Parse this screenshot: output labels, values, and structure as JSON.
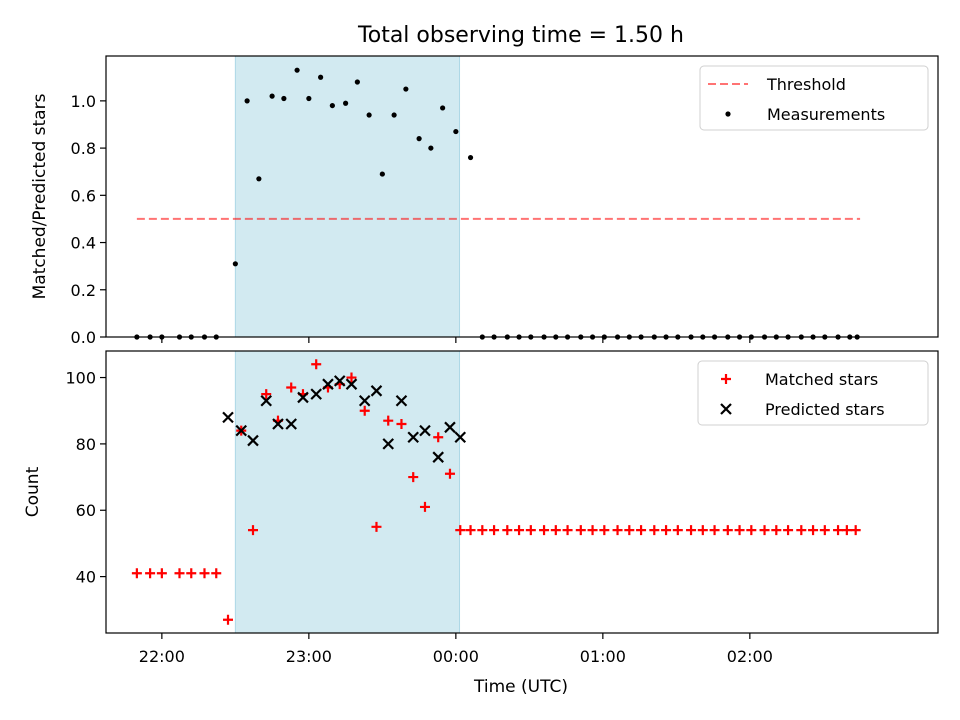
{
  "figure": {
    "title": "Total observing time = 1.50 h",
    "xlabel": "Time (UTC)",
    "x_ticks": [
      "22:00",
      "23:00",
      "00:00",
      "01:00",
      "02:00"
    ],
    "x_tick_hours": [
      22,
      23,
      24,
      25,
      26
    ],
    "x_range_hours": [
      21.62,
      27.28
    ],
    "shaded_interval_hours": [
      22.5,
      24.025
    ],
    "colors": {
      "shade": "#add8e6",
      "threshold": "#ff0000",
      "measurements": "#000000",
      "matched": "#ff0000",
      "predicted": "#000000"
    }
  },
  "chart_data": [
    {
      "type": "scatter",
      "ylabel": "Matched/Predicted stars",
      "ylim": [
        0,
        1.19
      ],
      "y_ticks": [
        "0.0",
        "0.2",
        "0.4",
        "0.6",
        "0.8",
        "1.0"
      ],
      "y_tick_values": [
        0,
        0.2,
        0.4,
        0.6,
        0.8,
        1.0
      ],
      "legend": [
        "Threshold",
        "Measurements"
      ],
      "legend_position": "top-right",
      "threshold": {
        "name": "Threshold",
        "value": 0.5,
        "x_from": 21.83,
        "x_to": 26.75
      },
      "series": [
        {
          "name": "Measurements",
          "x": [
            21.83,
            21.92,
            22.0,
            22.12,
            22.2,
            22.29,
            22.37,
            22.5,
            22.58,
            22.66,
            22.75,
            22.83,
            22.92,
            23.0,
            23.08,
            23.16,
            23.25,
            23.33,
            23.41,
            23.5,
            23.58,
            23.66,
            23.75,
            23.83,
            23.91,
            24.0,
            24.1,
            24.18,
            24.26,
            24.35,
            24.43,
            24.51,
            24.6,
            24.68,
            24.76,
            24.85,
            24.93,
            25.01,
            25.1,
            25.18,
            25.26,
            25.35,
            25.43,
            25.51,
            25.6,
            25.68,
            25.76,
            25.85,
            25.93,
            26.01,
            26.1,
            26.18,
            26.26,
            26.35,
            26.43,
            26.51,
            26.6,
            26.68,
            26.73
          ],
          "y": [
            0,
            0,
            0,
            0,
            0,
            0,
            0,
            0.31,
            1.0,
            0.67,
            1.02,
            1.01,
            1.13,
            1.01,
            1.1,
            0.98,
            0.99,
            1.08,
            0.94,
            0.69,
            0.94,
            1.05,
            0.84,
            0.8,
            0.97,
            0.87,
            0.76,
            0,
            0,
            0,
            0,
            0,
            0,
            0,
            0,
            0,
            0,
            0,
            0,
            0,
            0,
            0,
            0,
            0,
            0,
            0,
            0,
            0,
            0,
            0,
            0,
            0,
            0,
            0,
            0,
            0,
            0,
            0,
            0
          ],
          "_note_ignore": null
        }
      ]
    },
    {
      "type": "scatter",
      "ylabel": "Count",
      "ylim": [
        23,
        108
      ],
      "y_ticks": [
        "40",
        "60",
        "80",
        "100"
      ],
      "y_tick_values": [
        40,
        60,
        80,
        100
      ],
      "legend": [
        "Matched stars",
        "Predicted stars"
      ],
      "legend_position": "top-right",
      "series": [
        {
          "name": "Matched stars",
          "x": [
            21.83,
            21.92,
            22.0,
            22.12,
            22.2,
            22.29,
            22.37,
            22.45,
            22.54,
            22.62,
            22.71,
            22.79,
            22.88,
            22.96,
            23.05,
            23.13,
            23.21,
            23.29,
            23.38,
            23.46,
            23.54,
            23.63,
            23.71,
            23.79,
            23.88,
            23.96,
            24.03,
            24.1,
            24.18,
            24.26,
            24.35,
            24.43,
            24.51,
            24.6,
            24.68,
            24.76,
            24.85,
            24.93,
            25.01,
            25.1,
            25.18,
            25.26,
            25.35,
            25.43,
            25.51,
            25.6,
            25.68,
            25.76,
            25.85,
            25.93,
            26.01,
            26.1,
            26.18,
            26.26,
            26.35,
            26.43,
            26.51,
            26.6,
            26.66,
            26.72
          ],
          "y": [
            41,
            41,
            41,
            41,
            41,
            41,
            41,
            27,
            84,
            54,
            95,
            87,
            97,
            95,
            104,
            97,
            98,
            100,
            90,
            55,
            87,
            86,
            70,
            61,
            82,
            71,
            54,
            54,
            54,
            54,
            54,
            54,
            54,
            54,
            54,
            54,
            54,
            54,
            54,
            54,
            54,
            54,
            54,
            54,
            54,
            54,
            54,
            54,
            54,
            54,
            54,
            54,
            54,
            54,
            54,
            54,
            54,
            54,
            54,
            54
          ]
        },
        {
          "name": "Predicted stars",
          "x": [
            22.45,
            22.54,
            22.62,
            22.71,
            22.79,
            22.88,
            22.96,
            23.05,
            23.13,
            23.21,
            23.29,
            23.38,
            23.46,
            23.54,
            23.63,
            23.71,
            23.79,
            23.88,
            23.96,
            24.03
          ],
          "y": [
            88,
            84,
            81,
            93,
            86,
            86,
            94,
            95,
            98,
            99,
            98,
            93,
            96,
            80,
            93,
            82,
            84,
            76,
            85,
            82
          ]
        }
      ]
    }
  ]
}
